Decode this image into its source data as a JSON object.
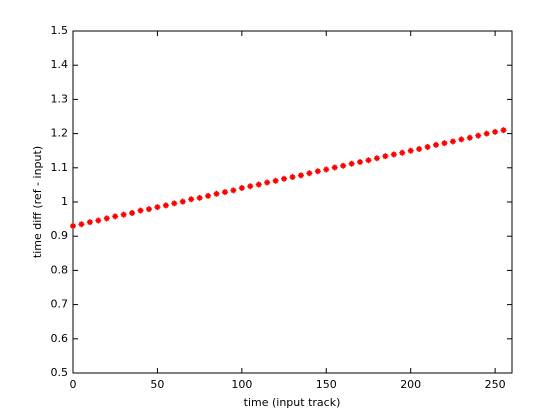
{
  "chart_data": {
    "type": "scatter",
    "xlabel": "time (input track)",
    "ylabel": "time diff (ref - input)",
    "color": "#ff0000",
    "xlim": [
      0,
      260
    ],
    "xticks": [
      0,
      50,
      100,
      150,
      200,
      250
    ],
    "ylim": [
      0.5,
      1.5
    ],
    "yticks": [
      0.5,
      0.6,
      0.7,
      0.8,
      0.9,
      1,
      1.1,
      1.2,
      1.3,
      1.4,
      1.5
    ],
    "x": [
      0,
      5,
      10,
      15,
      20,
      25,
      30,
      35,
      40,
      45,
      50,
      55,
      60,
      65,
      70,
      75,
      80,
      85,
      90,
      95,
      100,
      105,
      110,
      115,
      120,
      125,
      130,
      135,
      140,
      145,
      150,
      155,
      160,
      165,
      170,
      175,
      180,
      185,
      190,
      195,
      200,
      205,
      210,
      215,
      220,
      225,
      230,
      235,
      240,
      245,
      250,
      255
    ],
    "values": [
      0.93,
      0.935,
      0.941,
      0.946,
      0.952,
      0.958,
      0.963,
      0.968,
      0.975,
      0.979,
      0.985,
      0.99,
      0.996,
      1.001,
      1.008,
      1.012,
      1.018,
      1.024,
      1.029,
      1.034,
      1.041,
      1.046,
      1.051,
      1.057,
      1.062,
      1.068,
      1.073,
      1.078,
      1.084,
      1.09,
      1.095,
      1.101,
      1.106,
      1.112,
      1.117,
      1.122,
      1.128,
      1.134,
      1.139,
      1.144,
      1.15,
      1.155,
      1.161,
      1.167,
      1.172,
      1.177,
      1.183,
      1.188,
      1.194,
      1.2,
      1.205,
      1.21
    ]
  }
}
